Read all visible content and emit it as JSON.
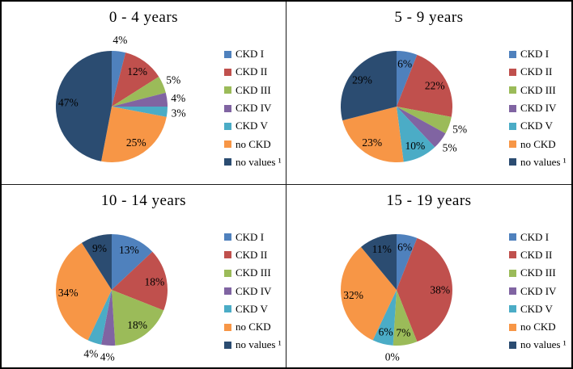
{
  "figure": {
    "background": "#ffffff",
    "border_color": "#000000",
    "divider_color": "#1a1a1a",
    "text_color": "#000000"
  },
  "palette": {
    "ckd_i_blue": "#4F81BD",
    "ckd_ii_red": "#C0504D",
    "ckd_iii_green": "#9BBB59",
    "ckd_iv_purple": "#8064A2",
    "ckd_v_cyan": "#4BACC6",
    "no_ckd_orange": "#F79646",
    "no_values_navy": "#2B4C71"
  },
  "legend": {
    "position": "right",
    "items": [
      {
        "label": "CKD I",
        "color": "#4F81BD"
      },
      {
        "label": "CKD II",
        "color": "#C0504D"
      },
      {
        "label": "CKD III",
        "color": "#9BBB59"
      },
      {
        "label": "CKD IV",
        "color": "#8064A2"
      },
      {
        "label": "CKD V",
        "color": "#4BACC6"
      },
      {
        "label": "no CKD",
        "color": "#F79646"
      },
      {
        "label": "no values ¹",
        "color": "#2B4C71"
      }
    ]
  },
  "chart_data": [
    {
      "type": "pie",
      "title": "0 - 4 years",
      "start_angle_deg": 0,
      "direction": "clockwise",
      "legend_position": "right",
      "categories": [
        "CKD I",
        "CKD II",
        "CKD III",
        "CKD IV",
        "CKD V",
        "no CKD",
        "no values ¹"
      ],
      "values": [
        4,
        12,
        5,
        4,
        3,
        25,
        47
      ],
      "data_labels": [
        "4%",
        "12%",
        "5%",
        "4%",
        "3%",
        "25%",
        "47%"
      ],
      "label_placement": [
        "outside",
        "inside",
        "outside",
        "outside",
        "outside",
        "inside",
        "inside"
      ],
      "colors": [
        "#4F81BD",
        "#C0504D",
        "#9BBB59",
        "#8064A2",
        "#4BACC6",
        "#F79646",
        "#2B4C71"
      ]
    },
    {
      "type": "pie",
      "title": "5 - 9 years",
      "start_angle_deg": 0,
      "direction": "clockwise",
      "legend_position": "right",
      "categories": [
        "CKD I",
        "CKD II",
        "CKD III",
        "CKD IV",
        "CKD V",
        "no CKD",
        "no values ¹"
      ],
      "values": [
        6,
        22,
        5,
        5,
        10,
        23,
        29
      ],
      "data_labels": [
        "6%",
        "22%",
        "5%",
        "5%",
        "10%",
        "23%",
        "29%"
      ],
      "label_placement": [
        "inside",
        "inside",
        "outside",
        "outside",
        "inside",
        "inside",
        "inside"
      ],
      "colors": [
        "#4F81BD",
        "#C0504D",
        "#9BBB59",
        "#8064A2",
        "#4BACC6",
        "#F79646",
        "#2B4C71"
      ]
    },
    {
      "type": "pie",
      "title": "10 - 14 years",
      "start_angle_deg": 0,
      "direction": "clockwise",
      "legend_position": "right",
      "categories": [
        "CKD I",
        "CKD II",
        "CKD III",
        "CKD IV",
        "CKD V",
        "no CKD",
        "no values ¹"
      ],
      "values": [
        13,
        18,
        18,
        4,
        4,
        34,
        9
      ],
      "data_labels": [
        "13%",
        "18%",
        "18%",
        "4%",
        "4%",
        "34%",
        "9%"
      ],
      "label_placement": [
        "inside",
        "inside",
        "inside",
        "outside",
        "outside",
        "inside",
        "inside"
      ],
      "colors": [
        "#4F81BD",
        "#C0504D",
        "#9BBB59",
        "#8064A2",
        "#4BACC6",
        "#F79646",
        "#2B4C71"
      ]
    },
    {
      "type": "pie",
      "title": "15 - 19 years",
      "start_angle_deg": 0,
      "direction": "clockwise",
      "legend_position": "right",
      "categories": [
        "CKD I",
        "CKD II",
        "CKD III",
        "CKD IV",
        "CKD V",
        "no CKD",
        "no values ¹"
      ],
      "values": [
        6,
        38,
        7,
        0,
        6,
        32,
        11
      ],
      "data_labels": [
        "6%",
        "38%",
        "7%",
        "0%",
        "6%",
        "32%",
        "11%"
      ],
      "label_placement": [
        "inside",
        "inside",
        "inside",
        "outside",
        "inside",
        "inside",
        "inside"
      ],
      "colors": [
        "#4F81BD",
        "#C0504D",
        "#9BBB59",
        "#8064A2",
        "#4BACC6",
        "#F79646",
        "#2B4C71"
      ]
    }
  ]
}
